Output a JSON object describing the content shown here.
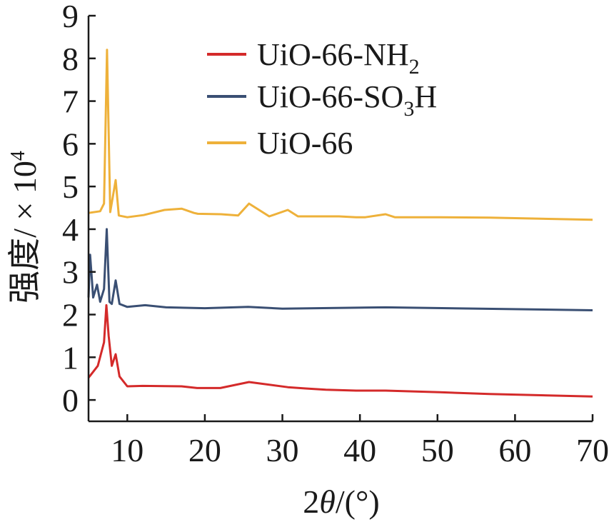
{
  "chart_data": {
    "type": "line",
    "xlabel_parts": {
      "pre": "2",
      "theta": "θ",
      "post": "/(°)"
    },
    "ylabel_parts": {
      "cn": "强度",
      "sep": "/ × 10",
      "exp": "4"
    },
    "xlim": [
      5,
      70
    ],
    "ylim": [
      -0.5,
      9.0
    ],
    "xticks": [
      10,
      20,
      30,
      40,
      50,
      60,
      70
    ],
    "yticks": [
      0,
      1,
      2,
      3,
      4,
      5,
      6,
      7,
      8,
      9
    ],
    "legend_position": "top-right",
    "series": [
      {
        "name_parts": [
          "UiO-66-NH",
          "2",
          ""
        ],
        "color": "#d42a2a",
        "peaks": [
          [
            5.0,
            0.52
          ],
          [
            6.2,
            0.8
          ],
          [
            7.0,
            1.35
          ],
          [
            7.3,
            2.22
          ],
          [
            7.6,
            1.5
          ],
          [
            8.0,
            0.8
          ],
          [
            8.5,
            1.07
          ],
          [
            9.0,
            0.55
          ],
          [
            10.0,
            0.32
          ],
          [
            12.0,
            0.33
          ],
          [
            17.0,
            0.32
          ],
          [
            19.0,
            0.28
          ],
          [
            22.0,
            0.28
          ],
          [
            25.7,
            0.42
          ],
          [
            30.7,
            0.3
          ],
          [
            33.0,
            0.27
          ],
          [
            35.6,
            0.24
          ],
          [
            39.5,
            0.22
          ],
          [
            43.3,
            0.22
          ],
          [
            50.3,
            0.18
          ],
          [
            56.7,
            0.14
          ],
          [
            70.0,
            0.08
          ]
        ]
      },
      {
        "name_parts": [
          "UiO-66-SO",
          "3",
          "H"
        ],
        "color": "#3a4f73",
        "peaks": [
          [
            5.0,
            2.4
          ],
          [
            5.2,
            3.4
          ],
          [
            5.6,
            2.4
          ],
          [
            6.1,
            2.7
          ],
          [
            6.5,
            2.3
          ],
          [
            7.0,
            2.6
          ],
          [
            7.35,
            4.0
          ],
          [
            7.7,
            2.3
          ],
          [
            8.0,
            2.25
          ],
          [
            8.5,
            2.8
          ],
          [
            9.0,
            2.25
          ],
          [
            10.0,
            2.18
          ],
          [
            12.3,
            2.22
          ],
          [
            15.0,
            2.17
          ],
          [
            20.0,
            2.15
          ],
          [
            25.6,
            2.18
          ],
          [
            30.0,
            2.14
          ],
          [
            43.3,
            2.17
          ],
          [
            70.0,
            2.1
          ]
        ]
      },
      {
        "name_parts": [
          "UiO-66",
          "",
          ""
        ],
        "color": "#eeb13a",
        "peaks": [
          [
            5.0,
            4.38
          ],
          [
            6.5,
            4.42
          ],
          [
            7.0,
            4.6
          ],
          [
            7.38,
            8.2
          ],
          [
            7.8,
            4.4
          ],
          [
            8.5,
            5.15
          ],
          [
            8.9,
            4.32
          ],
          [
            10.0,
            4.28
          ],
          [
            12.1,
            4.33
          ],
          [
            14.8,
            4.45
          ],
          [
            17.0,
            4.48
          ],
          [
            18.6,
            4.38
          ],
          [
            19.1,
            4.36
          ],
          [
            22.1,
            4.35
          ],
          [
            24.3,
            4.32
          ],
          [
            25.7,
            4.6
          ],
          [
            28.3,
            4.3
          ],
          [
            30.7,
            4.45
          ],
          [
            32.0,
            4.3
          ],
          [
            33.0,
            4.3
          ],
          [
            35.5,
            4.3
          ],
          [
            37.3,
            4.3
          ],
          [
            39.5,
            4.28
          ],
          [
            40.7,
            4.28
          ],
          [
            43.3,
            4.35
          ],
          [
            44.5,
            4.28
          ],
          [
            50.3,
            4.28
          ],
          [
            56.7,
            4.27
          ],
          [
            70.0,
            4.22
          ]
        ]
      }
    ]
  }
}
